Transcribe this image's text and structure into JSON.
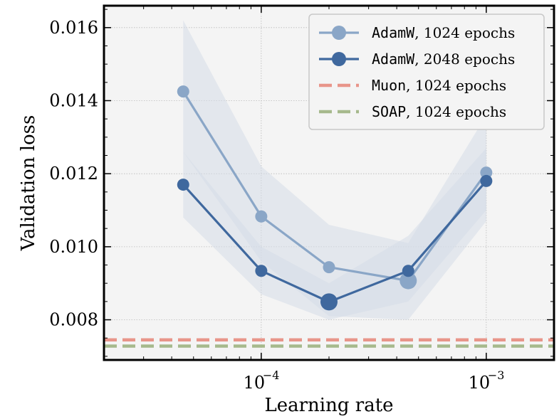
{
  "chart_data": {
    "type": "line",
    "title": "",
    "xlabel": "Learning rate",
    "ylabel": "Validation loss",
    "xscale": "log",
    "xlim": [
      2e-05,
      0.002
    ],
    "ylim": [
      0.0069,
      0.0166
    ],
    "x_ticks": [
      {
        "value": 0.0001,
        "base": "10",
        "exp": "−4"
      },
      {
        "value": 0.001,
        "base": "10",
        "exp": "−3"
      }
    ],
    "y_ticks": [
      {
        "value": 0.008,
        "label": "0.008"
      },
      {
        "value": 0.01,
        "label": "0.010"
      },
      {
        "value": 0.012,
        "label": "0.012"
      },
      {
        "value": 0.014,
        "label": "0.014"
      },
      {
        "value": 0.016,
        "label": "0.016"
      }
    ],
    "grid": true,
    "legend_position": "top-right",
    "series": [
      {
        "name": "AdamW, 1024 epochs",
        "optimizer": "AdamW",
        "suffix": ", 1024 epochs",
        "color": "#8aa6c7",
        "band_color": "#d6dde8",
        "x": [
          4.5e-05,
          0.0001,
          0.0002,
          0.00045,
          0.001
        ],
        "y": [
          0.01425,
          0.01083,
          0.00944,
          0.00907,
          0.01203
        ],
        "y_low": [
          0.0126,
          0.0096,
          0.0081,
          0.008,
          0.0107
        ],
        "y_high": [
          0.0162,
          0.0122,
          0.0106,
          0.0101,
          0.0136
        ],
        "best_index": 3
      },
      {
        "name": "AdamW, 2048 epochs",
        "optimizer": "AdamW",
        "suffix": ", 2048 epochs",
        "color": "#3f689e",
        "band_color": "#d6dde8",
        "x": [
          4.5e-05,
          0.0001,
          0.0002,
          0.00045,
          0.001
        ],
        "y": [
          0.0117,
          0.00934,
          0.00849,
          0.00934,
          0.0118
        ],
        "y_low": [
          0.0108,
          0.0087,
          0.008,
          0.0085,
          0.011
        ],
        "y_high": [
          0.0126,
          0.01,
          0.009,
          0.0103,
          0.0127
        ],
        "best_index": 2
      }
    ],
    "reference_lines": [
      {
        "name": "Muon, 1024 epochs",
        "optimizer": "Muon",
        "suffix": ", 1024 epochs",
        "y": 0.00745,
        "color": "#e8958a"
      },
      {
        "name": "SOAP, 1024 epochs",
        "optimizer": "SOAP",
        "suffix": ", 1024 epochs",
        "y": 0.00728,
        "color": "#a6b98c"
      }
    ]
  }
}
